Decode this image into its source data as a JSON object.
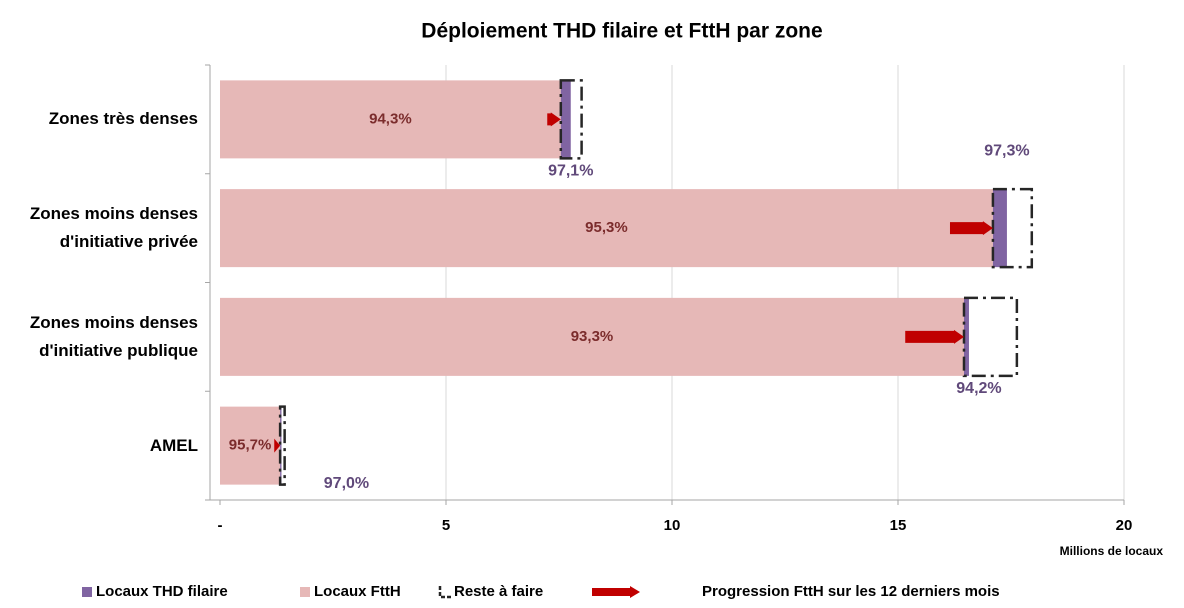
{
  "chart_data": {
    "type": "stacked-bar-horizontal",
    "title": "Déploiement THD filaire et FttH par zone",
    "categories": [
      "Zones très denses",
      "Zones moins denses\nd'initiative privée",
      "Zones moins denses\nd'initiative publique",
      "AMEL"
    ],
    "series": [
      {
        "name": "Locaux FttH",
        "color": "#e6b8b7",
        "values": [
          7.54,
          17.1,
          16.46,
          1.33
        ],
        "value_labels": [
          "94,3%",
          "95,3%",
          "93,3%",
          "95,7%"
        ]
      },
      {
        "name": "Locaux THD filaire",
        "color": "#8064a2",
        "values": [
          0.22,
          0.31,
          0.11,
          0.03
        ],
        "value_labels": [
          "97,1%",
          "97,3%",
          "94,2%",
          "97,0%"
        ]
      },
      {
        "name": "Reste à faire",
        "color": "#262626",
        "values": [
          0.24,
          0.55,
          1.06,
          0.07
        ]
      },
      {
        "name": "Progression FttH sur les 12 derniers mois",
        "color": "#c00000",
        "values": [
          0.3,
          0.95,
          1.3,
          0.13
        ]
      }
    ],
    "xlabel": "Millions de locaux",
    "xlim": [
      0,
      20
    ],
    "xticks": [
      {
        "value": 0,
        "label": "-"
      },
      5,
      10,
      15,
      20
    ],
    "grid": true
  }
}
